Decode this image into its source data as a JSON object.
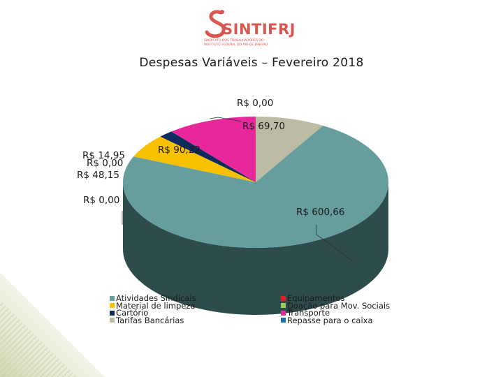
{
  "logo": {
    "name": "SINTIFRJ",
    "subtitle_lines": [
      "SINDICATO DOS TRABALHADORES DO",
      "INSTITUTO FEDERAL DO RIO DE JANEIRO"
    ]
  },
  "chart_data": {
    "type": "pie",
    "title": "Despesas Variáveis – Fevereiro 2018",
    "legend_position": "bottom",
    "slices": [
      {
        "name": "Atividades Sindicais",
        "value": 600.66,
        "label": "R$ 600,66",
        "color": "#669e9e"
      },
      {
        "name": "Material de limpeza",
        "value": 48.15,
        "label": "R$ 48,15",
        "color": "#f5c100"
      },
      {
        "name": "Cartório",
        "value": 14.95,
        "label": "R$ 14,95",
        "color": "#0f2a5e"
      },
      {
        "name": "Tarifas Bancárias",
        "value": 69.7,
        "label": "R$ 69,70",
        "color": "#bdbba4"
      },
      {
        "name": "Equipamentos",
        "value": 0.0,
        "label": "R$ 0,00",
        "color": "#e02020"
      },
      {
        "name": "Doação para Mov. Sociais",
        "value": 0.0,
        "label": "R$ 0,00",
        "color": "#9ccc5c"
      },
      {
        "name": "Transporte",
        "value": 90.22,
        "label": "R$ 90,22",
        "color": "#e8289a"
      },
      {
        "name": "Repasse para o caixa",
        "value": 0.0,
        "label": "R$ 0,00",
        "color": "#1a6ea8"
      }
    ]
  }
}
